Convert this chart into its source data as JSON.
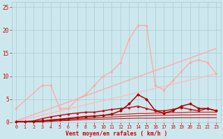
{
  "background_color": "#cce8ee",
  "grid_color": "#aacccc",
  "xlabel": "Vent moyen/en rafales ( km/h )",
  "xlabel_color": "#cc0000",
  "tick_color": "#cc0000",
  "xlim": [
    -0.5,
    23.5
  ],
  "ylim": [
    0,
    26
  ],
  "yticks": [
    0,
    5,
    10,
    15,
    20,
    25
  ],
  "xticks": [
    0,
    1,
    2,
    3,
    4,
    5,
    6,
    7,
    8,
    9,
    10,
    11,
    12,
    13,
    14,
    15,
    16,
    17,
    18,
    19,
    20,
    21,
    22,
    23
  ],
  "lines": [
    {
      "comment": "light pink diagonal trend line 1 - top one going to ~16",
      "x": [
        0,
        23
      ],
      "y": [
        0.3,
        16.0
      ],
      "color": "#ffaaaa",
      "lw": 1.0,
      "marker": null,
      "zorder": 2
    },
    {
      "comment": "light pink diagonal trend line 2 - lower one going to ~10",
      "x": [
        0,
        23
      ],
      "y": [
        0.2,
        10.5
      ],
      "color": "#ffbbbb",
      "lw": 1.0,
      "marker": null,
      "zorder": 2
    },
    {
      "comment": "light pink zigzag line with circle markers - goes up to 21",
      "x": [
        0,
        3,
        4,
        5,
        6,
        7,
        8,
        9,
        10,
        11,
        12,
        13,
        14,
        15,
        16,
        17,
        18,
        19,
        20,
        21,
        22,
        23
      ],
      "y": [
        3.0,
        8.0,
        8.0,
        3.0,
        3.0,
        5.0,
        6.0,
        8.0,
        10.0,
        11.0,
        13.0,
        18.0,
        21.0,
        21.0,
        8.0,
        7.0,
        9.0,
        11.0,
        13.0,
        13.5,
        13.0,
        10.5
      ],
      "color": "#ffaaaa",
      "lw": 1.0,
      "marker": "o",
      "markersize": 2.0,
      "zorder": 3
    },
    {
      "comment": "dark red line with triangle markers",
      "x": [
        0,
        1,
        2,
        3,
        4,
        5,
        6,
        7,
        8,
        9,
        10,
        11,
        12,
        13,
        14,
        15,
        16,
        17,
        18,
        19,
        20,
        21,
        22,
        23
      ],
      "y": [
        0.2,
        0.2,
        0.3,
        0.8,
        1.2,
        1.5,
        1.8,
        2.0,
        2.2,
        2.2,
        2.5,
        2.8,
        3.0,
        3.2,
        3.5,
        3.0,
        2.5,
        2.5,
        2.8,
        3.2,
        2.8,
        2.5,
        3.0,
        2.5
      ],
      "color": "#cc0000",
      "lw": 1.0,
      "marker": "^",
      "markersize": 2.0,
      "zorder": 5
    },
    {
      "comment": "dark red smooth line near bottom",
      "x": [
        0,
        1,
        2,
        3,
        4,
        5,
        6,
        7,
        8,
        9,
        10,
        11,
        12,
        13,
        14,
        15,
        16,
        17,
        18,
        19,
        20,
        21,
        22,
        23
      ],
      "y": [
        0.1,
        0.1,
        0.2,
        0.3,
        0.5,
        0.7,
        0.9,
        1.1,
        1.3,
        1.4,
        1.5,
        1.6,
        1.7,
        1.8,
        1.9,
        1.9,
        2.0,
        2.0,
        2.1,
        2.1,
        2.2,
        2.2,
        2.2,
        2.2
      ],
      "color": "#dd2222",
      "lw": 0.9,
      "marker": null,
      "zorder": 4
    },
    {
      "comment": "darker red line with diamond markers - spike at 14",
      "x": [
        0,
        1,
        2,
        3,
        4,
        5,
        6,
        7,
        8,
        9,
        10,
        11,
        12,
        13,
        14,
        15,
        16,
        17,
        18,
        19,
        20,
        21,
        22,
        23
      ],
      "y": [
        0.1,
        0.1,
        0.2,
        0.3,
        0.5,
        0.6,
        0.8,
        1.0,
        1.2,
        1.3,
        1.5,
        1.8,
        2.5,
        4.0,
        6.0,
        5.0,
        2.5,
        2.0,
        2.5,
        3.5,
        4.0,
        3.0,
        3.0,
        2.5
      ],
      "color": "#aa0000",
      "lw": 1.1,
      "marker": "D",
      "markersize": 2.0,
      "zorder": 5
    },
    {
      "comment": "medium red line nearly flat",
      "x": [
        0,
        1,
        2,
        3,
        4,
        5,
        6,
        7,
        8,
        9,
        10,
        11,
        12,
        13,
        14,
        15,
        16,
        17,
        18,
        19,
        20,
        21,
        22,
        23
      ],
      "y": [
        0.1,
        0.1,
        0.15,
        0.2,
        0.35,
        0.45,
        0.6,
        0.75,
        0.85,
        0.95,
        1.05,
        1.15,
        1.25,
        1.35,
        1.4,
        1.45,
        1.5,
        1.55,
        1.55,
        1.6,
        1.6,
        1.65,
        1.65,
        1.65
      ],
      "color": "#cc1111",
      "lw": 0.8,
      "marker": null,
      "zorder": 4
    },
    {
      "comment": "very flat red line at very bottom",
      "x": [
        0,
        1,
        2,
        3,
        4,
        5,
        6,
        7,
        8,
        9,
        10,
        11,
        12,
        13,
        14,
        15,
        16,
        17,
        18,
        19,
        20,
        21,
        22,
        23
      ],
      "y": [
        0.05,
        0.05,
        0.08,
        0.12,
        0.2,
        0.3,
        0.4,
        0.5,
        0.6,
        0.65,
        0.7,
        0.75,
        0.8,
        0.85,
        0.9,
        0.9,
        0.9,
        0.95,
        0.95,
        1.0,
        1.0,
        1.0,
        1.0,
        1.0
      ],
      "color": "#bb0000",
      "lw": 0.7,
      "marker": null,
      "zorder": 4
    }
  ]
}
